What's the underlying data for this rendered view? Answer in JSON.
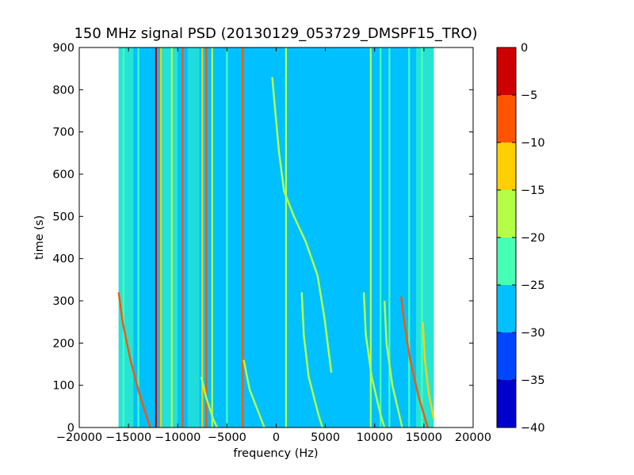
{
  "chart_data": {
    "type": "heatmap",
    "title": "150 MHz signal PSD (20130129_053729_DMSPF15_TRO)",
    "xlabel": "frequency (Hz)",
    "ylabel": "time (s)",
    "xlim": [
      -20000,
      20000
    ],
    "ylim": [
      0,
      900
    ],
    "x_ticks": [
      "−20000",
      "−15000",
      "−10000",
      "−5000",
      "0",
      "5000",
      "10000",
      "15000",
      "20000"
    ],
    "y_ticks": [
      "0",
      "100",
      "200",
      "300",
      "400",
      "500",
      "600",
      "700",
      "800",
      "900"
    ],
    "data_x_range": [
      -16000,
      16000
    ],
    "colorbar": {
      "levels": [
        -40,
        -35,
        -30,
        -25,
        -20,
        -15,
        -10,
        -5,
        0
      ],
      "tick_labels": [
        "−40",
        "−35",
        "−30",
        "−25",
        "−20",
        "−15",
        "−10",
        "−5",
        "0"
      ],
      "colors": [
        "#0000cd",
        "#0046ff",
        "#00c0ff",
        "#46ffb4",
        "#b4ff46",
        "#ffcf00",
        "#ff5500",
        "#cd0000"
      ]
    },
    "background_level_color": "#00c0ff",
    "constant_lines": [
      {
        "x": -15500,
        "level_color": "#46ffb4"
      },
      {
        "x": -14000,
        "level_color": "#46ffb4"
      },
      {
        "x": -12200,
        "level_color": "#cd0000"
      },
      {
        "x": -11700,
        "level_color": "#ffcf00"
      },
      {
        "x": -10600,
        "level_color": "#b4ff46"
      },
      {
        "x": -9500,
        "level_color": "#ff5500"
      },
      {
        "x": -7500,
        "level_color": "#ffcf00"
      },
      {
        "x": -7100,
        "level_color": "#ff5500"
      },
      {
        "x": -6500,
        "level_color": "#b4ff46"
      },
      {
        "x": -5000,
        "level_color": "#46ffb4"
      },
      {
        "x": -3400,
        "level_color": "#ff5500"
      },
      {
        "x": 1000,
        "level_color": "#b4ff46"
      },
      {
        "x": 9600,
        "level_color": "#b4ff46"
      },
      {
        "x": 10600,
        "level_color": "#46ffb4"
      },
      {
        "x": 11500,
        "level_color": "#46ffb4"
      },
      {
        "x": 13500,
        "level_color": "#46ffb4"
      },
      {
        "x": 14800,
        "level_color": "#46ffb4"
      }
    ],
    "doppler_tracks": [
      {
        "level_color": "#b4ff46",
        "points": [
          [
            -400,
            830
          ],
          [
            -100,
            750
          ],
          [
            300,
            650
          ],
          [
            800,
            560
          ],
          [
            1800,
            500
          ],
          [
            3000,
            440
          ],
          [
            4200,
            360
          ],
          [
            4900,
            260
          ],
          [
            5600,
            130
          ]
        ]
      },
      {
        "level_color": "#ff5500",
        "points": [
          [
            -16000,
            320
          ],
          [
            -15600,
            250
          ],
          [
            -14800,
            160
          ],
          [
            -13900,
            80
          ],
          [
            -12800,
            0
          ]
        ]
      },
      {
        "level_color": "#ff5500",
        "points": [
          [
            12700,
            310
          ],
          [
            13000,
            250
          ],
          [
            13600,
            160
          ],
          [
            14500,
            70
          ],
          [
            15400,
            0
          ]
        ]
      },
      {
        "level_color": "#b4ff46",
        "points": [
          [
            2600,
            320
          ],
          [
            2800,
            220
          ],
          [
            3300,
            120
          ],
          [
            4300,
            30
          ],
          [
            4700,
            0
          ]
        ]
      },
      {
        "level_color": "#b4ff46",
        "points": [
          [
            8900,
            320
          ],
          [
            9100,
            220
          ],
          [
            9700,
            120
          ],
          [
            10600,
            30
          ],
          [
            11000,
            0
          ]
        ]
      },
      {
        "level_color": "#b4ff46",
        "points": [
          [
            11000,
            300
          ],
          [
            11200,
            200
          ],
          [
            11800,
            100
          ],
          [
            12500,
            30
          ],
          [
            12800,
            0
          ]
        ]
      },
      {
        "level_color": "#ffcf00",
        "points": [
          [
            14900,
            250
          ],
          [
            15100,
            160
          ],
          [
            15500,
            80
          ],
          [
            16000,
            20
          ]
        ]
      },
      {
        "level_color": "#b4ff46",
        "points": [
          [
            -3300,
            160
          ],
          [
            -2700,
            90
          ],
          [
            -1700,
            30
          ],
          [
            -1200,
            0
          ]
        ]
      },
      {
        "level_color": "#b4ff46",
        "points": [
          [
            -7600,
            120
          ],
          [
            -7100,
            70
          ],
          [
            -6400,
            20
          ],
          [
            -6000,
            0
          ]
        ]
      }
    ]
  }
}
